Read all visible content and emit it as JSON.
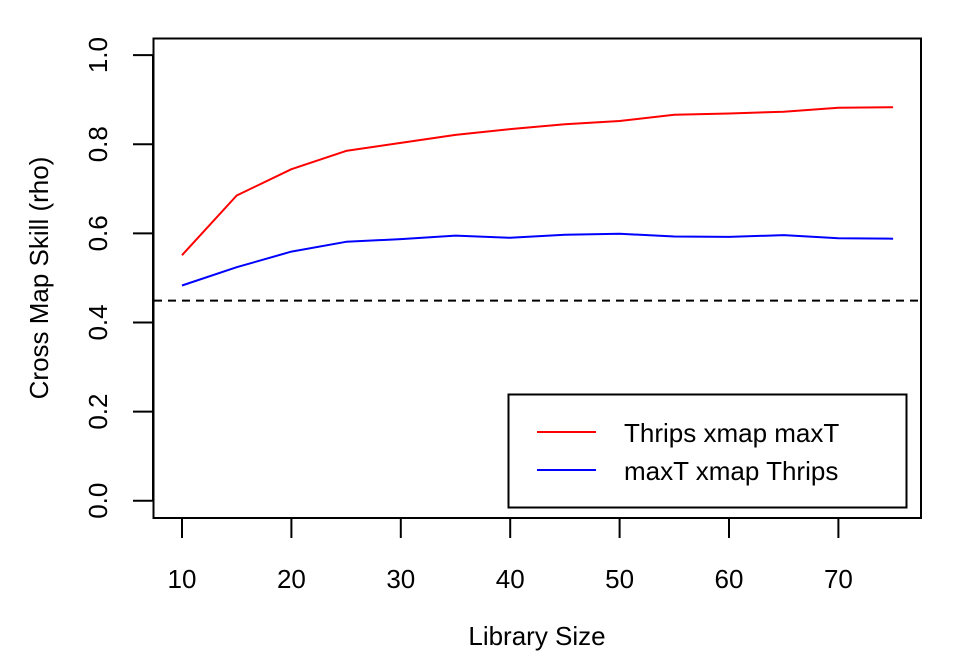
{
  "chart_data": {
    "type": "line",
    "title": "",
    "xlabel": "Library Size",
    "ylabel": "Cross Map Skill (rho)",
    "xlim": [
      7.4,
      77.5
    ],
    "ylim": [
      -0.04,
      1.04
    ],
    "x_ticks": [
      10,
      20,
      30,
      40,
      50,
      60,
      70
    ],
    "y_ticks": [
      0.0,
      0.2,
      0.4,
      0.6,
      0.8,
      1.0
    ],
    "x_tick_labels": [
      "10",
      "20",
      "30",
      "40",
      "50",
      "60",
      "70"
    ],
    "y_tick_labels": [
      "0.0",
      "0.2",
      "0.4",
      "0.6",
      "0.8",
      "1.0"
    ],
    "grid": false,
    "legend_position": "bottomright",
    "x": [
      10,
      15,
      20,
      25,
      30,
      35,
      40,
      45,
      50,
      55,
      60,
      65,
      70,
      75
    ],
    "series": [
      {
        "name": "Thrips xmap maxT",
        "color": "#ff0000",
        "values": [
          0.551,
          0.685,
          0.744,
          0.785,
          0.803,
          0.821,
          0.834,
          0.845,
          0.852,
          0.866,
          0.869,
          0.873,
          0.882,
          0.883
        ]
      },
      {
        "name": "maxT xmap Thrips",
        "color": "#0000ff",
        "values": [
          0.483,
          0.524,
          0.559,
          0.581,
          0.587,
          0.595,
          0.59,
          0.597,
          0.599,
          0.593,
          0.592,
          0.596,
          0.589,
          0.588
        ]
      }
    ],
    "annotations": [
      {
        "type": "hline",
        "y": 0.449,
        "style": "dashed",
        "color": "#000000"
      }
    ]
  },
  "legend": {
    "items": [
      {
        "label": "Thrips xmap maxT",
        "color": "#ff0000"
      },
      {
        "label": "maxT xmap Thrips",
        "color": "#0000ff"
      }
    ]
  }
}
